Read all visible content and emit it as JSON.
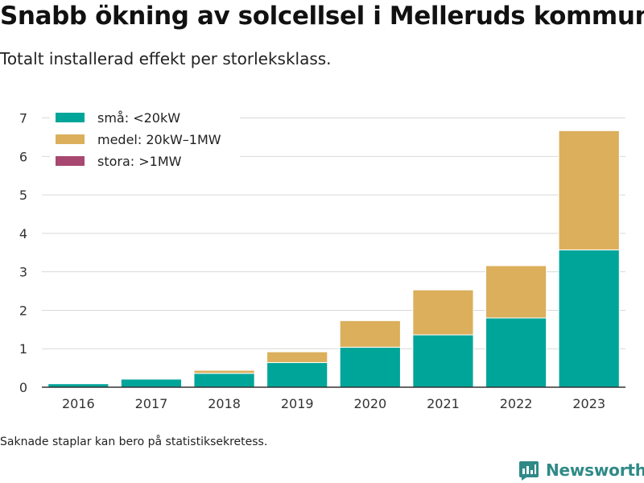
{
  "header": {
    "title": "Snabb ökning av solcellsel i Melleruds kommun",
    "subtitle": "Totalt installerad effekt per storleksklass."
  },
  "footnote": "Saknade staplar kan bero på statistiksekretess.",
  "brand": {
    "name": "Newsworthy",
    "icon": "newsworthy-logo-icon",
    "color": "#2f8a86"
  },
  "chart_data": {
    "type": "bar",
    "stacked": true,
    "categories": [
      "2016",
      "2017",
      "2018",
      "2019",
      "2020",
      "2021",
      "2022",
      "2023"
    ],
    "series": [
      {
        "name": "små: <20kW",
        "color": "#00a59a",
        "values": [
          0.09,
          0.21,
          0.36,
          0.64,
          1.04,
          1.36,
          1.8,
          3.57
        ]
      },
      {
        "name": "medel: 20kW–1MW",
        "color": "#dbaf5c",
        "values": [
          0.0,
          0.0,
          0.08,
          0.28,
          0.69,
          1.17,
          1.36,
          3.1
        ]
      },
      {
        "name": "stora: >1MW",
        "color": "#a84870",
        "values": [
          0,
          0,
          0,
          0,
          0,
          0,
          0,
          0
        ]
      }
    ],
    "yticks": [
      0,
      1,
      2,
      3,
      4,
      5,
      6,
      7
    ],
    "ylim": [
      0,
      7.2
    ],
    "grid": true,
    "legend_position": "top-left",
    "xlabel": "",
    "ylabel": ""
  }
}
